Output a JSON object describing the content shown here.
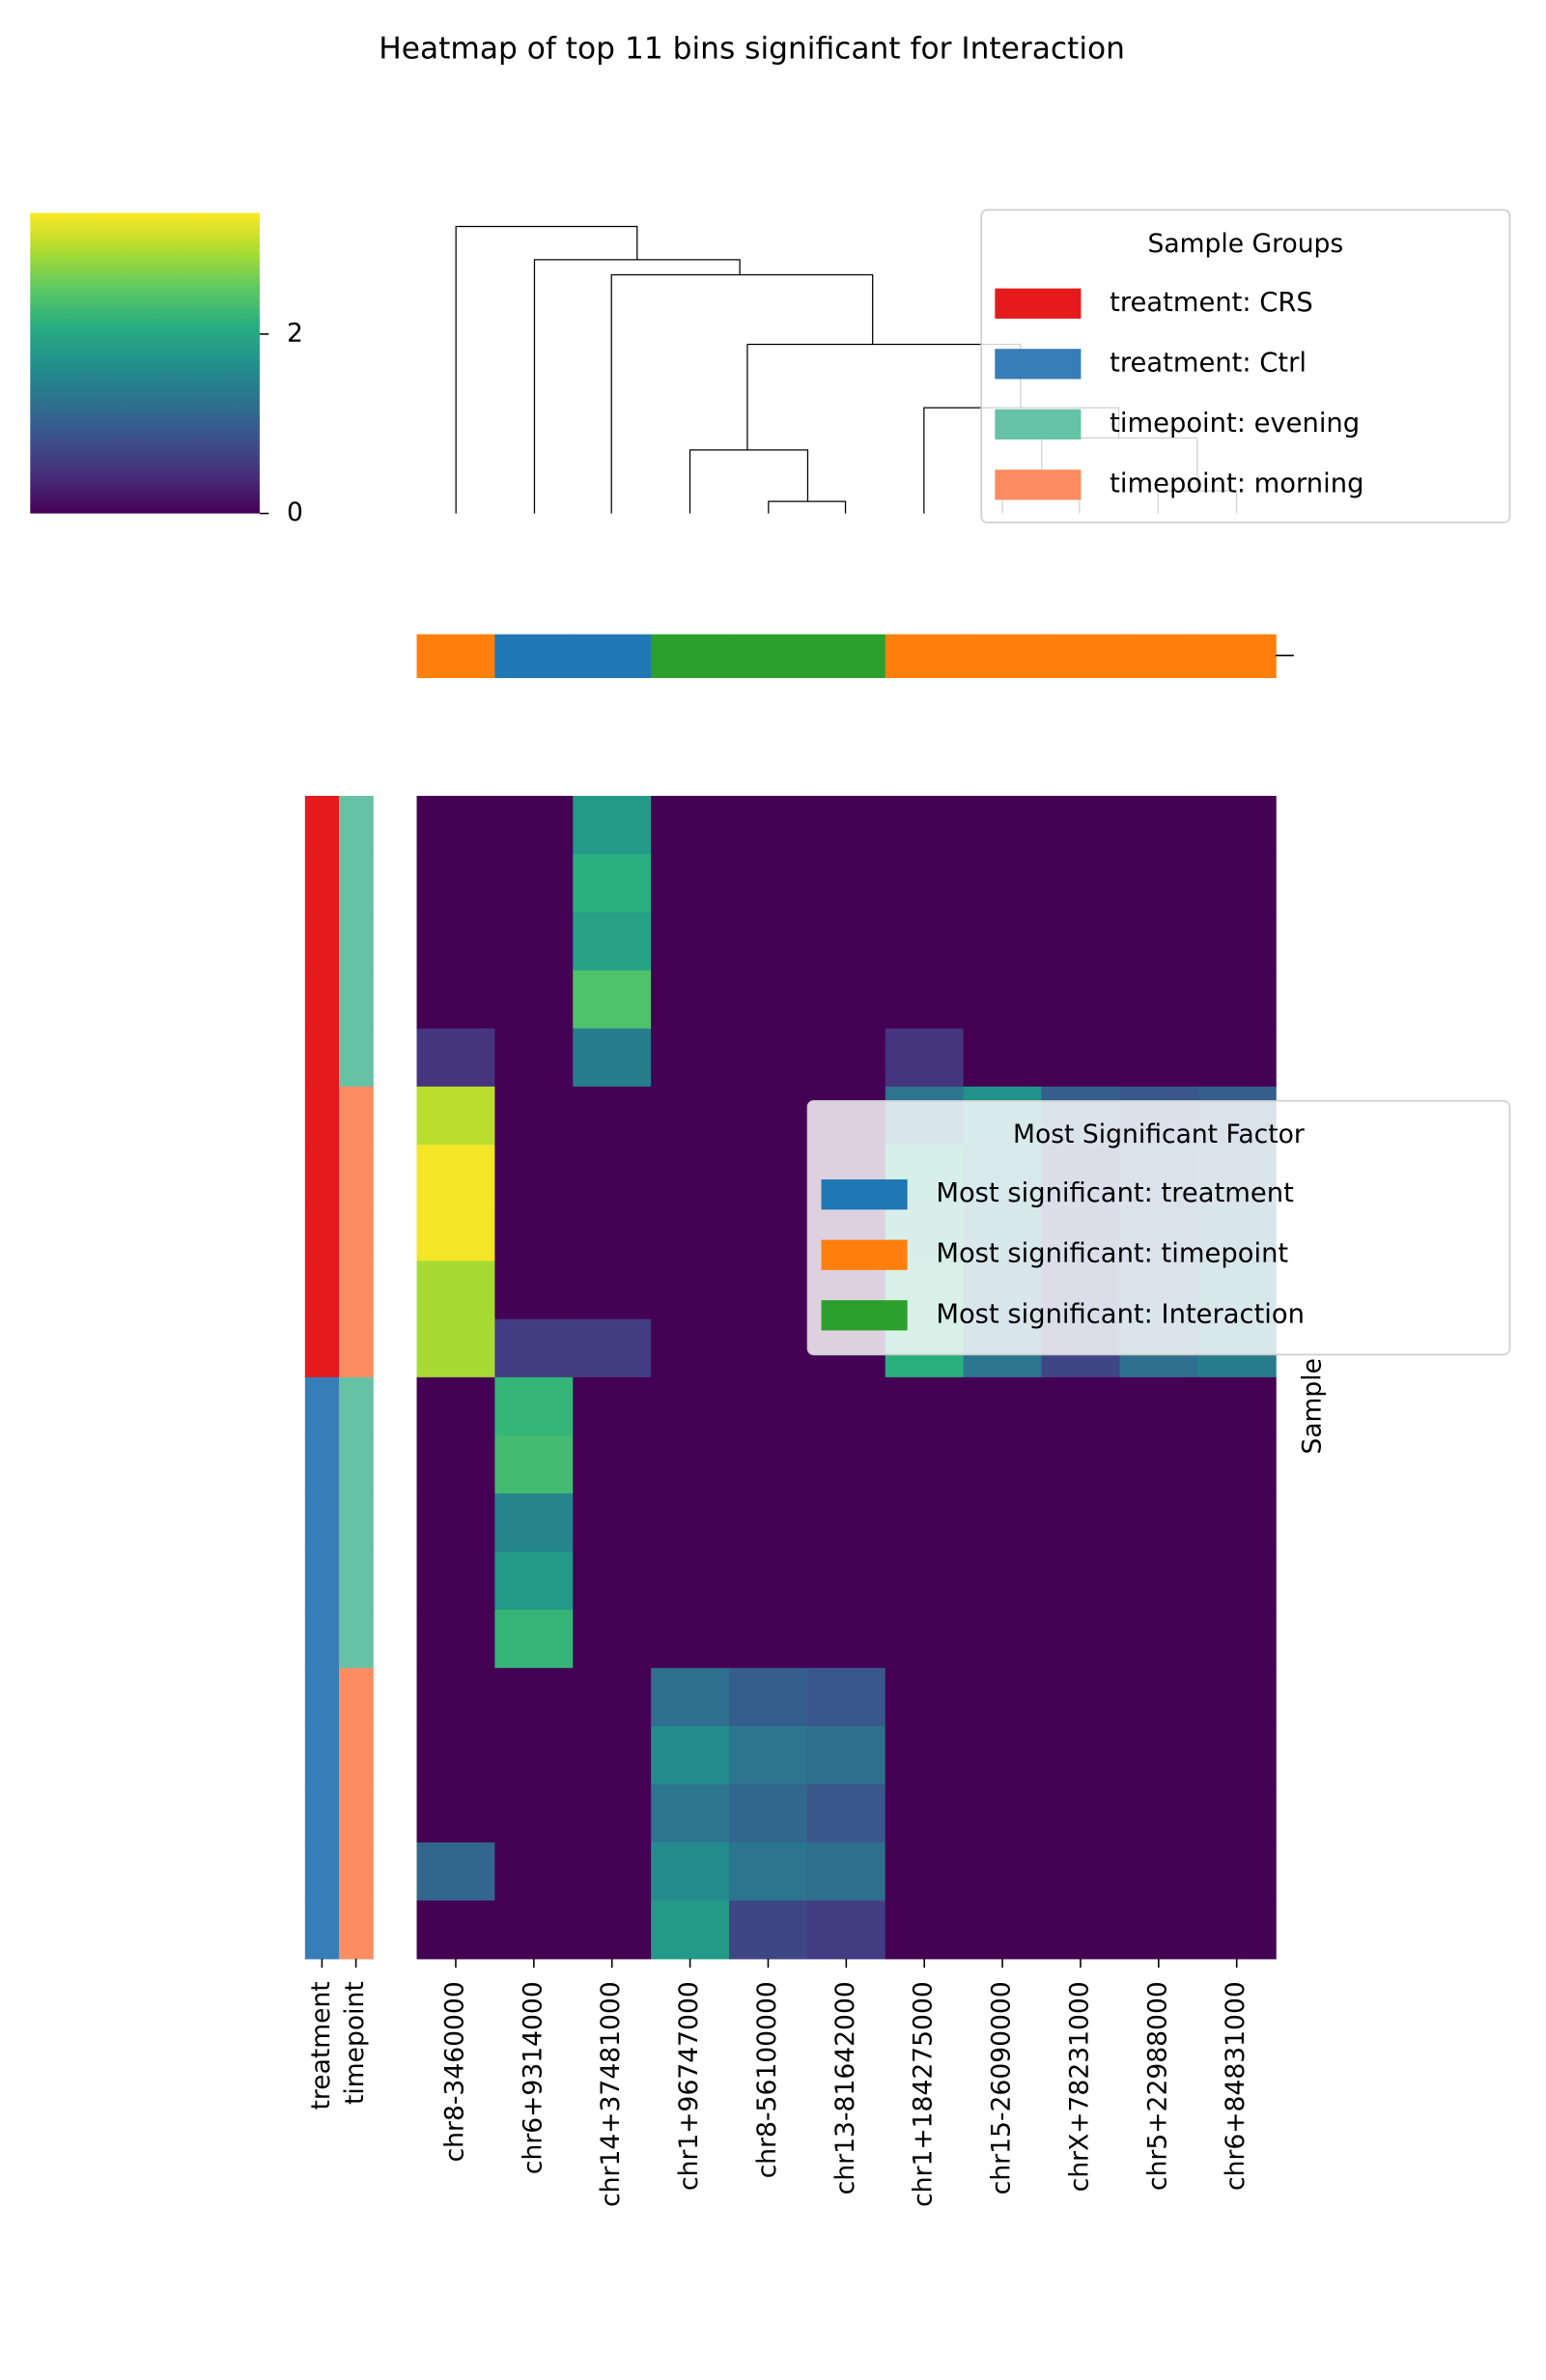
{
  "chart_data": {
    "type": "clustermap",
    "title": "Heatmap of top 11 bins significant for Interaction",
    "categories": [
      "chr8-3460000",
      "chr6+9314000",
      "chr14+37481000",
      "chr1+96747000",
      "chr8-56100000",
      "chr13-81642000",
      "chr1+184275000",
      "chr15-26090000",
      "chrX+78231000",
      "chr5+22988000",
      "chr6+84831000"
    ],
    "values": [
      [
        0,
        0,
        1.8,
        0,
        0,
        0,
        0,
        0,
        0,
        0,
        0
      ],
      [
        0,
        0,
        2.1,
        0,
        0,
        0,
        0,
        0,
        0,
        0,
        0
      ],
      [
        0,
        0,
        1.9,
        0,
        0,
        0,
        0,
        0,
        0,
        0,
        0
      ],
      [
        0,
        0,
        2.4,
        0,
        0,
        0,
        0,
        0,
        0,
        0,
        0
      ],
      [
        0.5,
        0,
        1.4,
        0,
        0,
        0,
        0.5,
        0,
        0,
        0,
        0
      ],
      [
        3.0,
        0,
        0,
        0,
        0,
        0,
        1.3,
        1.7,
        1.0,
        0.9,
        1.0
      ],
      [
        3.3,
        0,
        0,
        0,
        0,
        0,
        2.0,
        1.5,
        0.8,
        1.0,
        1.2
      ],
      [
        3.3,
        0,
        0,
        0,
        0,
        0,
        1.9,
        1.4,
        0.8,
        1.1,
        1.3
      ],
      [
        2.9,
        0,
        0,
        0,
        0,
        0,
        2.1,
        1.3,
        0.7,
        1.2,
        1.4
      ],
      [
        2.9,
        0.6,
        0.6,
        0,
        0,
        0,
        2.1,
        1.3,
        0.7,
        1.2,
        1.4
      ],
      [
        0,
        2.2,
        0,
        0,
        0,
        0,
        0,
        0,
        0,
        0,
        0
      ],
      [
        0,
        2.3,
        0,
        0,
        0,
        0,
        0,
        0,
        0,
        0,
        0
      ],
      [
        0,
        1.5,
        0,
        0,
        0,
        0,
        0,
        0,
        0,
        0,
        0
      ],
      [
        0,
        1.8,
        0,
        0,
        0,
        0,
        0,
        0,
        0,
        0,
        0
      ],
      [
        0,
        2.2,
        0,
        0,
        0,
        0,
        0,
        0,
        0,
        0,
        0
      ],
      [
        0,
        0,
        0,
        1.2,
        1.0,
        0.9,
        0,
        0,
        0,
        0,
        0
      ],
      [
        0,
        0,
        0,
        1.6,
        1.3,
        1.2,
        0,
        0,
        0,
        0,
        0
      ],
      [
        0,
        0,
        0,
        1.3,
        1.1,
        0.9,
        0,
        0,
        0,
        0,
        0
      ],
      [
        1.1,
        0,
        0,
        1.6,
        1.3,
        1.2,
        0,
        0,
        0,
        0,
        0
      ],
      [
        0,
        0,
        0,
        1.8,
        0.7,
        0.6,
        0,
        0,
        0,
        0,
        0
      ]
    ],
    "vlim": [
      0,
      3.35
    ],
    "cbar_ticks": [
      0,
      2
    ],
    "ylabel": "Sample",
    "row_annotations": [
      {
        "label": "treatment",
        "groups": [
          0,
          0,
          0,
          0,
          0,
          0,
          0,
          0,
          0,
          0,
          1,
          1,
          1,
          1,
          1,
          1,
          1,
          1,
          1,
          1
        ]
      },
      {
        "label": "timepoint",
        "groups": [
          2,
          2,
          2,
          2,
          2,
          3,
          3,
          3,
          3,
          3,
          2,
          2,
          2,
          2,
          2,
          3,
          3,
          3,
          3,
          3
        ]
      }
    ],
    "col_groups": [
      1,
      0,
      0,
      2,
      2,
      2,
      1,
      1,
      1,
      1,
      1
    ],
    "sample_legend": {
      "title": "Sample Groups",
      "entries": [
        {
          "label": "treatment: CRS",
          "color": "#e41a1c"
        },
        {
          "label": "treatment: Ctrl",
          "color": "#377eb8"
        },
        {
          "label": "timepoint: evening",
          "color": "#66c2a5"
        },
        {
          "label": "timepoint: morning",
          "color": "#fc8d62"
        }
      ]
    },
    "factor_legend": {
      "title": "Most Significant Factor",
      "entries": [
        {
          "label": "Most significant: treatment",
          "color": "#1f77b4"
        },
        {
          "label": "Most significant: timepoint",
          "color": "#ff7f0e"
        },
        {
          "label": "Most significant: Interaction",
          "color": "#2ca02c"
        }
      ]
    }
  }
}
